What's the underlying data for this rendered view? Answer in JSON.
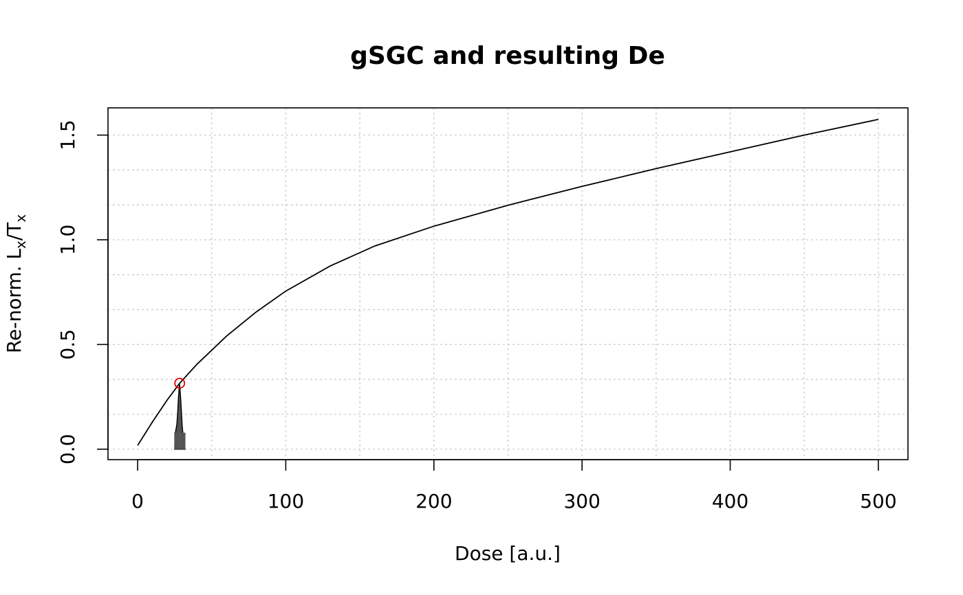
{
  "chart_data": {
    "type": "line",
    "title": "gSGC and resulting De",
    "xlabel": "Dose [a.u.]",
    "ylabel": {
      "prefix": "Re-norm. L",
      "sub1": "x",
      "mid": "/T",
      "sub2": "x"
    },
    "xlim": [
      -20,
      520
    ],
    "ylim": [
      -0.05,
      1.63
    ],
    "x_ticks": [
      0,
      100,
      200,
      300,
      400,
      500
    ],
    "x_tick_labels": [
      "0",
      "100",
      "200",
      "300",
      "400",
      "500"
    ],
    "y_ticks": [
      0.0,
      0.5,
      1.0,
      1.5
    ],
    "y_tick_labels": [
      "0.0",
      "0.5",
      "1.0",
      "1.5"
    ],
    "grid": true,
    "series": [
      {
        "x": [
          0,
          10,
          20,
          28.4,
          40,
          60,
          80,
          100,
          130,
          160,
          200,
          250,
          300,
          350,
          400,
          450,
          500
        ],
        "y": [
          0.018,
          0.13,
          0.235,
          0.315,
          0.405,
          0.54,
          0.655,
          0.755,
          0.875,
          0.97,
          1.065,
          1.165,
          1.255,
          1.34,
          1.42,
          1.5,
          1.575
        ],
        "color": "#000000"
      }
    ],
    "de_point": {
      "x": 28.4,
      "y": 0.315,
      "color": "#dd0000"
    },
    "de_distribution": {
      "x": [
        25,
        25.5,
        26,
        26.5,
        27,
        27.5,
        28,
        28.4,
        29,
        29.5,
        30,
        30.5,
        31,
        31.5,
        32
      ],
      "y": [
        0.0,
        0.08,
        0.1,
        0.12,
        0.17,
        0.24,
        0.29,
        0.31,
        0.25,
        0.19,
        0.12,
        0.08,
        0.04,
        0.01,
        0.0
      ],
      "color": "#000000"
    }
  }
}
